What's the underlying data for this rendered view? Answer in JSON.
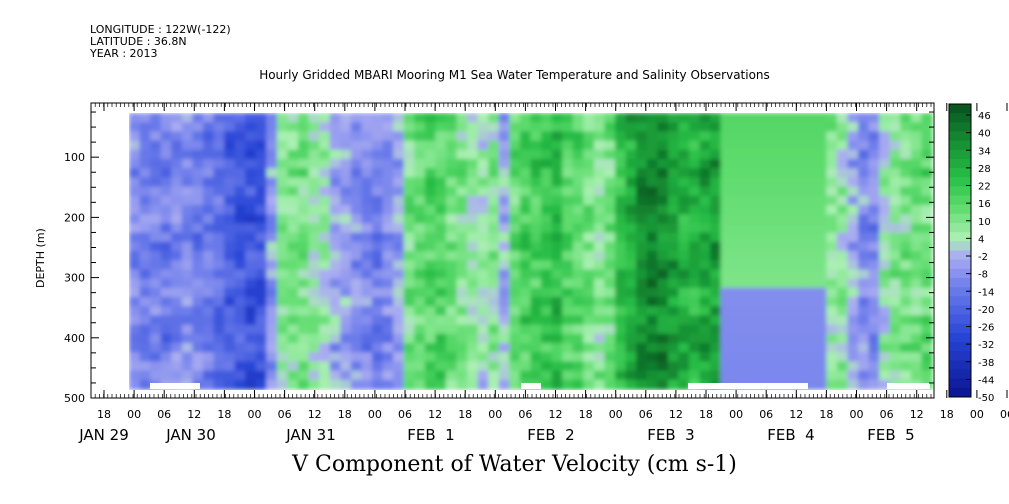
{
  "header": {
    "longitude": "LONGITUDE : 122W(-122)",
    "latitude": "LATITUDE : 36.8N",
    "year": "YEAR : 2013"
  },
  "chart_data": {
    "type": "heatmap",
    "title": "Hourly Gridded MBARI Mooring M1 Sea Water Temperature and Salinity Observations",
    "variable_label": "V Component of Water Velocity (cm s-1)",
    "ylabel": "DEPTH (m)",
    "ylim": [
      500,
      10
    ],
    "y_reversed": true,
    "y_ticks": [
      100,
      200,
      300,
      400,
      500
    ],
    "x_hours_ticks": [
      "18",
      "00",
      "06",
      "12",
      "18",
      "00",
      "06",
      "12",
      "18",
      "00",
      "06",
      "12",
      "18",
      "00",
      "06",
      "12",
      "18",
      "00",
      "06",
      "12",
      "18",
      "00",
      "06",
      "12",
      "18",
      "00",
      "06",
      "12",
      "18",
      "00",
      "06",
      "12"
    ],
    "x_day_labels": [
      "JAN 29",
      "JAN 30",
      "JAN 31",
      "FEB  1",
      "FEB  2",
      "FEB  3",
      "FEB  4",
      "FEB  5"
    ],
    "colorbar_levels": [
      "46",
      "40",
      "34",
      "28",
      "22",
      "16",
      "10",
      "4",
      "-2",
      "-8",
      "-14",
      "-20",
      "-26",
      "-32",
      "-38",
      "-44",
      "-50"
    ],
    "colors": {
      "strong_positive": "#0b5a1e",
      "positive": "#23b23b",
      "weak_positive": "#8fe89a",
      "weak_negative": "#a7a8f0",
      "negative": "#5a66e6",
      "strong_negative": "#0a1490"
    },
    "column_means": [
      -12,
      -14,
      -13,
      -15,
      -12,
      -10,
      -14,
      -16,
      -18,
      -22,
      -25,
      -26,
      -24,
      -8,
      6,
      8,
      10,
      4,
      2,
      -6,
      -8,
      -10,
      -12,
      -14,
      -10,
      -6,
      10,
      12,
      14,
      16,
      10,
      8,
      4,
      2,
      6,
      -4,
      12,
      16,
      18,
      20,
      22,
      16,
      14,
      8,
      6,
      10,
      20,
      26,
      32,
      36,
      34,
      30,
      26,
      24,
      28,
      30,
      14,
      14,
      14,
      14,
      14,
      14,
      12,
      12,
      10,
      8,
      6,
      4,
      -6,
      -10,
      -12,
      2,
      6,
      8,
      10,
      12
    ]
  },
  "colorbar": {
    "labels": [
      "46",
      "40",
      "34",
      "28",
      "22",
      "16",
      "10",
      "4",
      "-2",
      "-8",
      "-14",
      "-20",
      "-26",
      "-32",
      "-38",
      "-44",
      "-50"
    ]
  }
}
